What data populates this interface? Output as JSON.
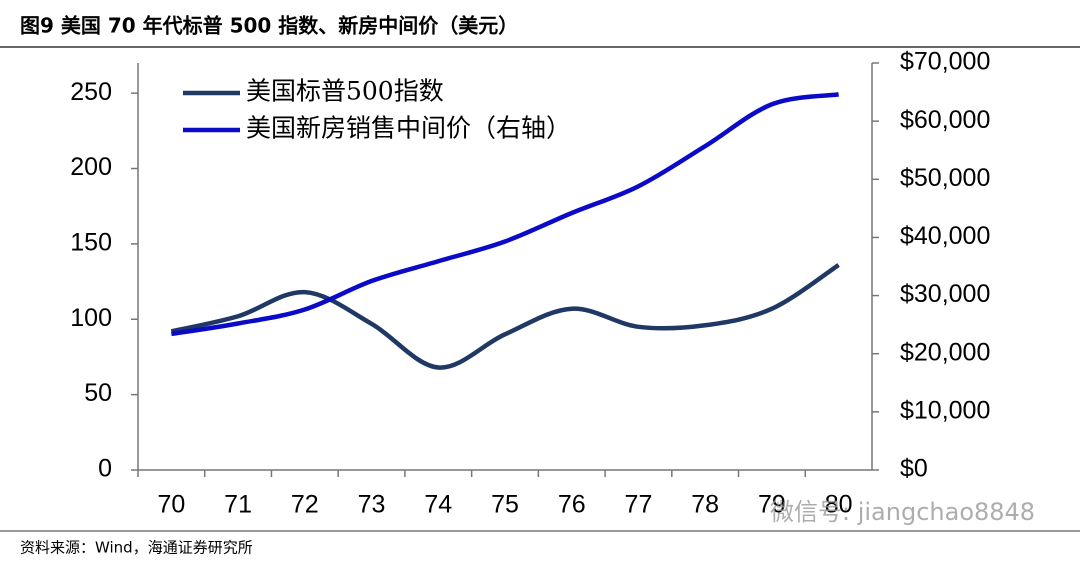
{
  "title": "图9  美国 70 年代标普 500 指数、新房中间价（美元）",
  "source": "资料来源：Wind，海通证券研究所",
  "watermark": "微信号: jiangchao8848",
  "chart_data": {
    "type": "line",
    "categories": [
      "70",
      "71",
      "72",
      "73",
      "74",
      "75",
      "76",
      "77",
      "78",
      "79",
      "80"
    ],
    "series": [
      {
        "name": "美国标普500指数",
        "color": "#1f3864",
        "values": [
          92,
          102,
          118,
          97,
          68,
          90,
          107,
          95,
          96,
          107,
          136
        ]
      },
      {
        "name": "美国新房销售中间价（右轴）",
        "color": "#0a0ac8",
        "axis": "y2",
        "values": [
          23400,
          25200,
          27600,
          32500,
          35900,
          39300,
          44200,
          48800,
          55700,
          62900,
          64600
        ]
      }
    ],
    "ylim": [
      0,
      270
    ],
    "yticks": [
      0,
      50,
      100,
      150,
      200,
      250
    ],
    "y2lim": [
      0,
      70000
    ],
    "y2ticks": [
      {
        "value": 0,
        "label": "$0"
      },
      {
        "value": 10000,
        "label": "$10,000"
      },
      {
        "value": 20000,
        "label": "$20,000"
      },
      {
        "value": 30000,
        "label": "$30,000"
      },
      {
        "value": 40000,
        "label": "$40,000"
      },
      {
        "value": 50000,
        "label": "$50,000"
      },
      {
        "value": 60000,
        "label": "$60,000"
      },
      {
        "value": 70000,
        "label": "$70,000"
      }
    ],
    "legend": "top-left"
  }
}
